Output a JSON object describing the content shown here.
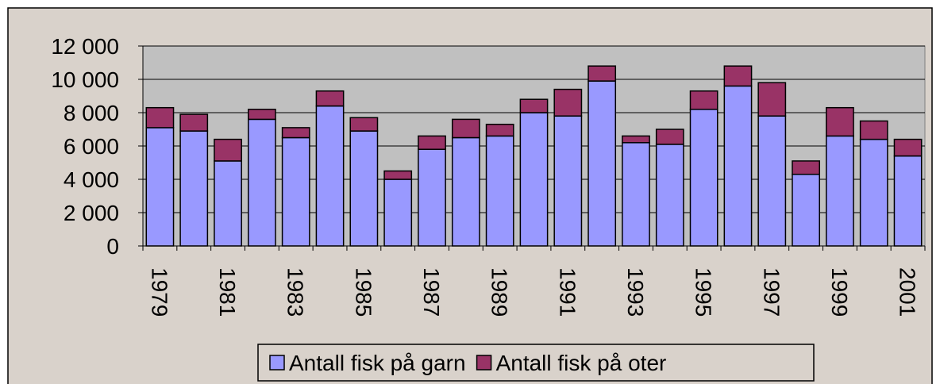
{
  "chart_data": {
    "type": "stacked-bar",
    "categories": [
      "1979",
      null,
      "1981",
      null,
      "1983",
      null,
      "1985",
      null,
      "1987",
      null,
      "1989",
      null,
      "1991",
      null,
      "1993",
      null,
      "1995",
      null,
      "1997",
      null,
      "1999",
      null,
      "2001"
    ],
    "series": [
      {
        "name": "Antall fisk på garn",
        "color": "#9999ff",
        "values": [
          7100,
          6900,
          5100,
          7600,
          6500,
          8400,
          6900,
          4000,
          5800,
          6500,
          6600,
          8000,
          7800,
          9900,
          6200,
          6100,
          8200,
          9600,
          7800,
          4300,
          6600,
          6400,
          5400
        ]
      },
      {
        "name": "Antall fisk på oter",
        "color": "#993366",
        "values": [
          1200,
          1000,
          1300,
          600,
          600,
          900,
          800,
          500,
          800,
          1100,
          700,
          800,
          1600,
          900,
          400,
          900,
          1100,
          1200,
          2000,
          800,
          1700,
          1100,
          1000
        ]
      }
    ],
    "ylim": [
      0,
      12000
    ],
    "yticks": [
      0,
      {
        "value": 2000,
        "label": "2 000"
      },
      {
        "value": 4000,
        "label": "4 000"
      },
      {
        "value": 6000,
        "label": "6 000"
      },
      {
        "value": 8000,
        "label": "8 000"
      },
      {
        "value": 10000,
        "label": "10 000"
      },
      {
        "value": 12000,
        "label": "12 000"
      }
    ],
    "grid": true,
    "legend": "bottom"
  }
}
